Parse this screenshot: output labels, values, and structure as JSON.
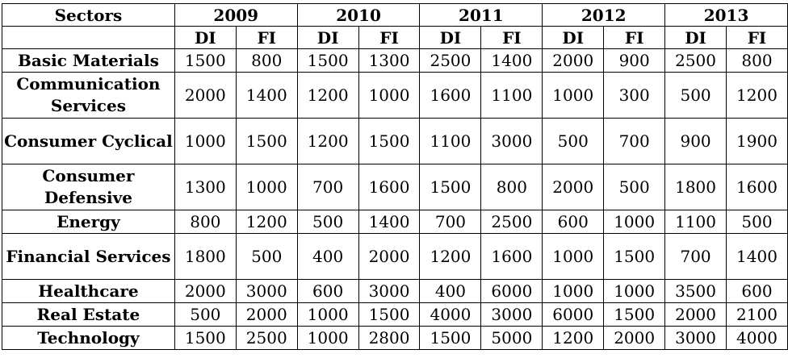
{
  "chart_data": {
    "type": "table",
    "header_label": "Sectors",
    "years": [
      "2009",
      "2010",
      "2011",
      "2012",
      "2013"
    ],
    "subheaders": [
      "DI",
      "FI"
    ],
    "rows": [
      {
        "sector": "Basic Materials",
        "values": [
          1500,
          800,
          1500,
          1300,
          2500,
          1400,
          2000,
          900,
          2500,
          800
        ]
      },
      {
        "sector": "Communication Services",
        "values": [
          2000,
          1400,
          1200,
          1000,
          1600,
          1100,
          1000,
          300,
          500,
          1200
        ]
      },
      {
        "sector": "Consumer Cyclical",
        "values": [
          1000,
          1500,
          1200,
          1500,
          1100,
          3000,
          500,
          700,
          900,
          1900
        ]
      },
      {
        "sector": "Consumer Defensive",
        "values": [
          1300,
          1000,
          700,
          1600,
          1500,
          800,
          2000,
          500,
          1800,
          1600
        ]
      },
      {
        "sector": "Energy",
        "values": [
          800,
          1200,
          500,
          1400,
          700,
          2500,
          600,
          1000,
          1100,
          500
        ]
      },
      {
        "sector": "Financial Services",
        "values": [
          1800,
          500,
          400,
          2000,
          1200,
          1600,
          1000,
          1500,
          700,
          1400
        ]
      },
      {
        "sector": "Healthcare",
        "values": [
          2000,
          3000,
          600,
          3000,
          400,
          6000,
          1000,
          1000,
          3500,
          600
        ]
      },
      {
        "sector": "Real Estate",
        "values": [
          500,
          2000,
          1000,
          1500,
          4000,
          3000,
          6000,
          1500,
          2000,
          2100
        ]
      },
      {
        "sector": "Technology",
        "values": [
          1500,
          2500,
          1000,
          2800,
          1500,
          5000,
          1200,
          2000,
          3000,
          4000
        ]
      }
    ]
  }
}
